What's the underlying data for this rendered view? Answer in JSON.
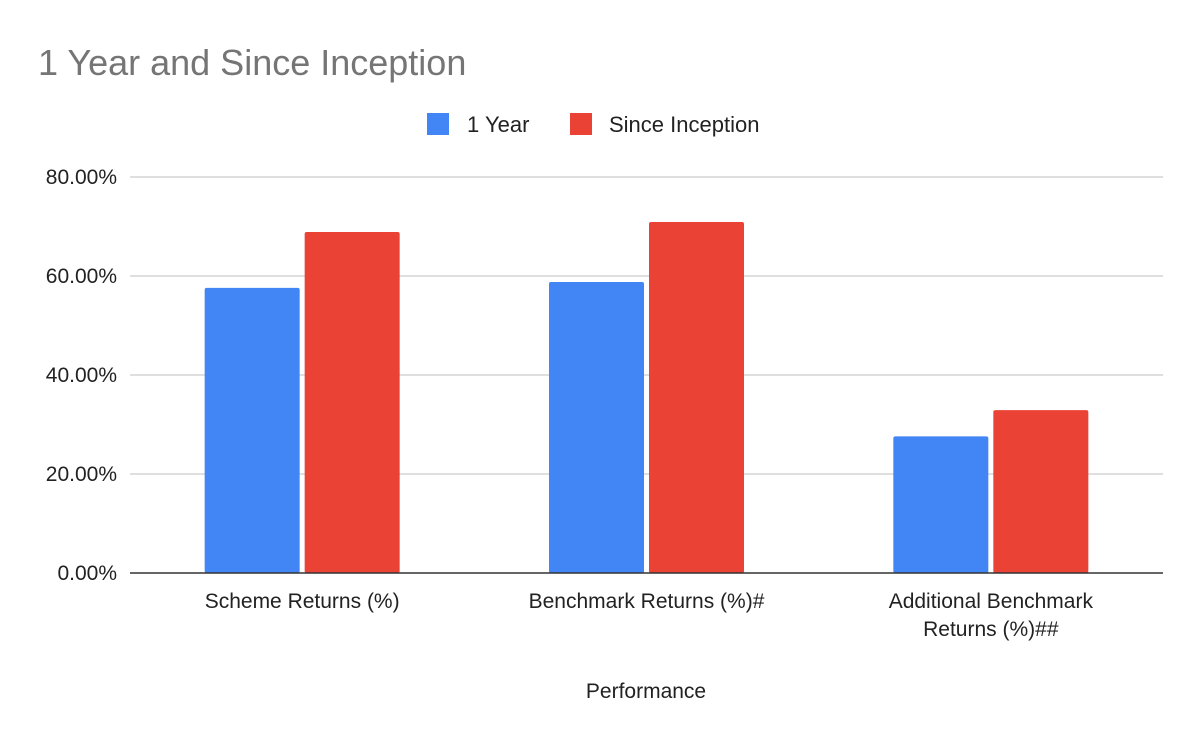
{
  "chart_data": {
    "type": "bar",
    "title": "1 Year and Since Inception",
    "xlabel": "Performance",
    "ylabel": "",
    "categories": [
      [
        "Scheme Returns (%)"
      ],
      [
        "Benchmark Returns (%)#"
      ],
      [
        "Additional Benchmark",
        "Returns (%)##"
      ]
    ],
    "series": [
      {
        "name": "1 Year",
        "color": "#4285f4",
        "values": [
          57.6,
          58.8,
          27.6
        ]
      },
      {
        "name": "Since Inception",
        "color": "#ea4335",
        "values": [
          68.9,
          70.9,
          32.9
        ]
      }
    ],
    "ylim": [
      0,
      80
    ],
    "yticks": [
      "0.00%",
      "20.00%",
      "40.00%",
      "60.00%",
      "80.00%"
    ],
    "ytick_values": [
      0,
      20,
      40,
      60,
      80
    ],
    "grid": true,
    "legend_position": "top"
  }
}
